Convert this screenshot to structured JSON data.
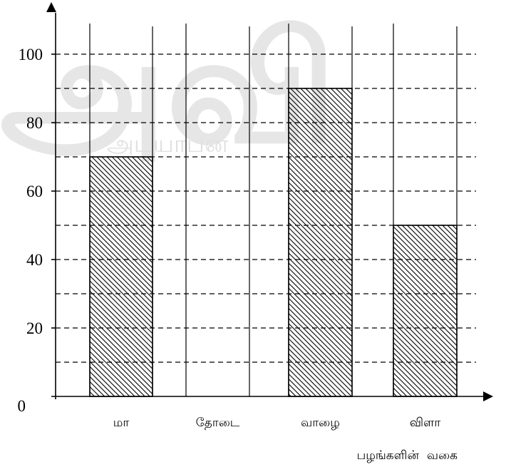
{
  "chart_data": {
    "type": "bar",
    "categories": [
      "மா",
      "தோடை",
      "வாழை",
      "விளா"
    ],
    "values": [
      70,
      0,
      90,
      50
    ],
    "xlabel": "பழங்களின்  வகை",
    "ylabel": "",
    "ylim": [
      0,
      100
    ],
    "yticks": [
      0,
      20,
      40,
      60,
      80,
      100
    ],
    "grid": "dashed horizontal every 10",
    "bar_fill": "diagonal-hatch",
    "colors": {
      "axis": "#000000",
      "watermark": "#e6e6e6"
    }
  },
  "watermark": {
    "text": "அவி",
    "subtext": "அடயாபன"
  }
}
